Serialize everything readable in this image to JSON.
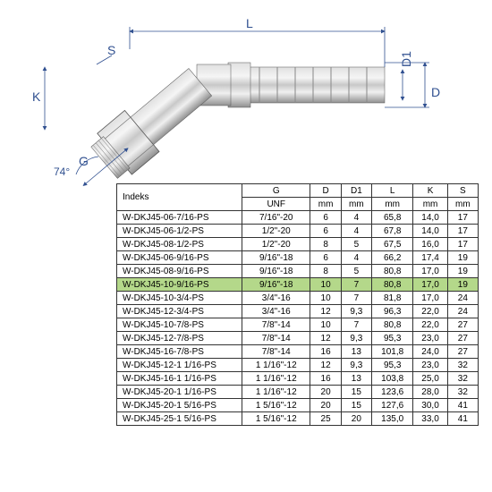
{
  "diagram": {
    "stroke_color": "#305090",
    "fitting_color": "#b8b8b8",
    "fitting_shadow": "#888888",
    "angle_label": "74°",
    "dim_L": "L",
    "dim_D": "D",
    "dim_D1": "D1",
    "dim_K": "K",
    "dim_S": "S",
    "dim_G": "G"
  },
  "table": {
    "headers": {
      "index": "Indeks",
      "g": "G",
      "d": "D",
      "d1": "D1",
      "l": "L",
      "k": "K",
      "s": "S"
    },
    "units": {
      "g": "UNF",
      "d": "mm",
      "d1": "mm",
      "l": "mm",
      "k": "mm",
      "s": "mm"
    },
    "highlighted_row": 5,
    "rows": [
      {
        "index": "W-DKJ45-06-7/16-PS",
        "g": "7/16\"-20",
        "d": "6",
        "d1": "4",
        "l": "65,8",
        "k": "14,0",
        "s": "17"
      },
      {
        "index": "W-DKJ45-06-1/2-PS",
        "g": "1/2\"-20",
        "d": "6",
        "d1": "4",
        "l": "67,8",
        "k": "14,0",
        "s": "17"
      },
      {
        "index": "W-DKJ45-08-1/2-PS",
        "g": "1/2\"-20",
        "d": "8",
        "d1": "5",
        "l": "67,5",
        "k": "16,0",
        "s": "17"
      },
      {
        "index": "W-DKJ45-06-9/16-PS",
        "g": "9/16\"-18",
        "d": "6",
        "d1": "4",
        "l": "66,2",
        "k": "17,4",
        "s": "19"
      },
      {
        "index": "W-DKJ45-08-9/16-PS",
        "g": "9/16\"-18",
        "d": "8",
        "d1": "5",
        "l": "80,8",
        "k": "17,0",
        "s": "19"
      },
      {
        "index": "W-DKJ45-10-9/16-PS",
        "g": "9/16\"-18",
        "d": "10",
        "d1": "7",
        "l": "80,8",
        "k": "17,0",
        "s": "19"
      },
      {
        "index": "W-DKJ45-10-3/4-PS",
        "g": "3/4\"-16",
        "d": "10",
        "d1": "7",
        "l": "81,8",
        "k": "17,0",
        "s": "24"
      },
      {
        "index": "W-DKJ45-12-3/4-PS",
        "g": "3/4\"-16",
        "d": "12",
        "d1": "9,3",
        "l": "96,3",
        "k": "22,0",
        "s": "24"
      },
      {
        "index": "W-DKJ45-10-7/8-PS",
        "g": "7/8\"-14",
        "d": "10",
        "d1": "7",
        "l": "80,8",
        "k": "22,0",
        "s": "27"
      },
      {
        "index": "W-DKJ45-12-7/8-PS",
        "g": "7/8\"-14",
        "d": "12",
        "d1": "9,3",
        "l": "95,3",
        "k": "23,0",
        "s": "27"
      },
      {
        "index": "W-DKJ45-16-7/8-PS",
        "g": "7/8\"-14",
        "d": "16",
        "d1": "13",
        "l": "101,8",
        "k": "24,0",
        "s": "27"
      },
      {
        "index": "W-DKJ45-12-1 1/16-PS",
        "g": "1 1/16\"-12",
        "d": "12",
        "d1": "9,3",
        "l": "95,3",
        "k": "23,0",
        "s": "32"
      },
      {
        "index": "W-DKJ45-16-1 1/16-PS",
        "g": "1 1/16\"-12",
        "d": "16",
        "d1": "13",
        "l": "103,8",
        "k": "25,0",
        "s": "32"
      },
      {
        "index": "W-DKJ45-20-1 1/16-PS",
        "g": "1 1/16\"-12",
        "d": "20",
        "d1": "15",
        "l": "123,6",
        "k": "28,0",
        "s": "32"
      },
      {
        "index": "W-DKJ45-20-1 5/16-PS",
        "g": "1 5/16\"-12",
        "d": "20",
        "d1": "15",
        "l": "127,6",
        "k": "30,0",
        "s": "41"
      },
      {
        "index": "W-DKJ45-25-1 5/16-PS",
        "g": "1 5/16\"-12",
        "d": "25",
        "d1": "20",
        "l": "135,0",
        "k": "33,0",
        "s": "41"
      }
    ]
  }
}
